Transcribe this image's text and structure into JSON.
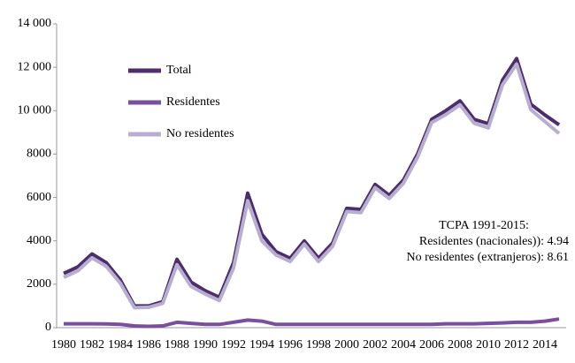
{
  "chart_data": {
    "type": "line",
    "categories": [
      "1980",
      null,
      "1982",
      null,
      "1984",
      null,
      "1986",
      null,
      "1988",
      null,
      "1990",
      null,
      "1992",
      null,
      "1994",
      null,
      "1996",
      null,
      "1998",
      null,
      "2000",
      null,
      "2002",
      null,
      "2004",
      null,
      "2006",
      null,
      "2008",
      null,
      "2010",
      null,
      "2012",
      null,
      "2014",
      null
    ],
    "series": [
      {
        "name": "Total",
        "color": "#4b2e6b",
        "values": [
          2500,
          2800,
          3400,
          3000,
          2200,
          1000,
          1000,
          1200,
          3150,
          2100,
          1700,
          1400,
          3000,
          6200,
          4300,
          3500,
          3200,
          4000,
          3200,
          3900,
          5500,
          5450,
          6600,
          6100,
          6800,
          8000,
          9600,
          10000,
          10450,
          9600,
          9400,
          11400,
          12400,
          10300,
          9800,
          9350
        ]
      },
      {
        "name": "Residentes",
        "color": "#7a4fa0",
        "values": [
          180,
          180,
          180,
          170,
          150,
          80,
          60,
          80,
          250,
          200,
          150,
          150,
          250,
          350,
          300,
          150,
          150,
          150,
          150,
          150,
          150,
          150,
          150,
          150,
          150,
          150,
          150,
          180,
          180,
          180,
          200,
          220,
          250,
          250,
          300,
          400
        ]
      },
      {
        "name": "No residentes",
        "color": "#b8aed0",
        "values": [
          2320,
          2620,
          3220,
          2830,
          2050,
          920,
          940,
          1120,
          2900,
          1900,
          1550,
          1250,
          2750,
          5850,
          4000,
          3350,
          3050,
          3850,
          3050,
          3750,
          5350,
          5300,
          6450,
          5950,
          6650,
          7850,
          9450,
          9820,
          10270,
          9420,
          9200,
          11180,
          12150,
          10050,
          9500,
          8950
        ]
      }
    ],
    "ylim": [
      0,
      14000
    ],
    "yticks": [
      0,
      2000,
      4000,
      6000,
      8000,
      {
        "value": 10000,
        "label": "10 000"
      },
      {
        "value": 12000,
        "label": "12 000"
      },
      {
        "value": 14000,
        "label": "14 000"
      }
    ],
    "grid": false,
    "annotations": [
      "TCPA 1991-2015:",
      "Residentes (nacionales)): 4.94",
      "No residentes (extranjeros): 8.61"
    ]
  }
}
